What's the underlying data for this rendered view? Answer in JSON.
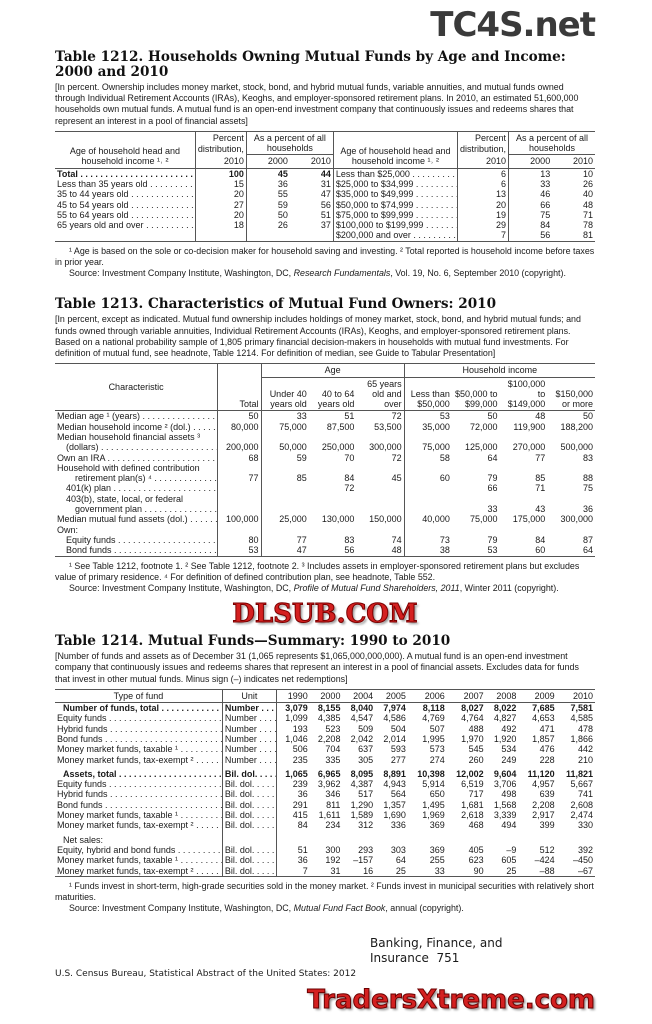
{
  "t1212": {
    "title": "Table 1212. Households Owning Mutual Funds by Age and Income: 2000 and 2010",
    "note": "[In percent. Ownership includes money market, stock, bond, and hybrid mutual funds, variable annuities, and mutual funds owned through Individual Retirement Accounts (IRAs), Keoghs, and employer-sponsored retirement plans. In 2010, an estimated 51,600,000 households own mutual funds. A mutual fund is an open-end investment company that continuously issues and redeems shares that represent an interest in a pool of financial assets]",
    "headers": {
      "age": "Age of household head and household income ¹˒ ²",
      "pct": "Percent distribution,",
      "pct_year": "2010",
      "share": "As a percent of all households",
      "y2000": "2000",
      "y2010": "2010"
    },
    "rows": [
      {
        "age": "Total",
        "pct": "100",
        "a": "45",
        "b": "44",
        "inc": "Less than $25,000",
        "ipct": "6",
        "ia": "13",
        "ib": "10",
        "bold": true
      },
      {
        "age": "Less than 35 years old",
        "pct": "15",
        "a": "36",
        "b": "31",
        "inc": "$25,000 to $34,999",
        "ipct": "6",
        "ia": "33",
        "ib": "26"
      },
      {
        "age": "35 to 44 years old",
        "pct": "20",
        "a": "55",
        "b": "47",
        "inc": "$35,000 to $49,999",
        "ipct": "13",
        "ia": "46",
        "ib": "40"
      },
      {
        "age": "45 to 54 years old",
        "pct": "27",
        "a": "59",
        "b": "56",
        "inc": "$50,000 to $74,999",
        "ipct": "20",
        "ia": "66",
        "ib": "48"
      },
      {
        "age": "55 to 64 years old",
        "pct": "20",
        "a": "50",
        "b": "51",
        "inc": "$75,000 to $99,999",
        "ipct": "19",
        "ia": "75",
        "ib": "71"
      },
      {
        "age": "65 years old and over",
        "pct": "18",
        "a": "26",
        "b": "37",
        "inc": "$100,000 to $199,999",
        "ipct": "29",
        "ia": "84",
        "ib": "78"
      },
      {
        "age": "",
        "pct": "",
        "a": "",
        "b": "",
        "inc": "$200,000 and over",
        "ipct": "7",
        "ia": "56",
        "ib": "81"
      }
    ],
    "footnote": "¹ Age is based on the sole or co-decision maker for household saving and investing. ² Total reported is household income before taxes in prior year.",
    "source_pre": "Source: Investment Company Institute, Washington, DC, ",
    "source_italic": "Research Fundamentals",
    "source_post": ", Vol. 19, No. 6, September 2010 (copyright)."
  },
  "t1213": {
    "title": "Table 1213. Characteristics of Mutual Fund Owners: 2010",
    "note": "[In percent, except as indicated. Mutual fund ownership includes holdings of money market, stock, bond, and hybrid mutual funds; and funds owned through variable annuities, Individual Retirement Accounts (IRAs), Keoghs, and employer-sponsored retirement plans. Based on a national probability sample of 1,805 primary financial decision-makers in households with mutual fund investments. For definition of mutual fund, see headnote, Table 1214. For definition of median, see Guide to Tabular Presentation]",
    "headers": {
      "characteristic": "Characteristic",
      "total": "Total",
      "age_group": "Age",
      "income_group": "Household income",
      "cols": [
        "Under 40 years old",
        "40 to 64 years old",
        "65 years old and over",
        "Less than $50,000",
        "$50,000 to $99,000",
        "$100,000 to $149,000",
        "$150,000 or more"
      ]
    },
    "rows": [
      {
        "label": "Median age ¹ (years)",
        "v": [
          "50",
          "33",
          "51",
          "72",
          "53",
          "50",
          "48",
          "50"
        ]
      },
      {
        "label": "Median household income ² (dol.)",
        "v": [
          "80,000",
          "75,000",
          "87,500",
          "53,500",
          "35,000",
          "72,000",
          "119,900",
          "188,200"
        ]
      },
      {
        "label": "Median household financial assets ³",
        "v": [],
        "nodots": true
      },
      {
        "label": "(dollars)",
        "indent": 1,
        "v": [
          "200,000",
          "50,000",
          "250,000",
          "300,000",
          "75,000",
          "125,000",
          "270,000",
          "500,000"
        ]
      },
      {
        "label": "Own an IRA",
        "v": [
          "68",
          "59",
          "70",
          "72",
          "58",
          "64",
          "77",
          "83"
        ]
      },
      {
        "label": "Household with defined contribution",
        "v": [],
        "nodots": true
      },
      {
        "label": "retirement plan(s) ⁴",
        "indent": 2,
        "v": [
          "77",
          "85",
          "84",
          "45",
          "60",
          "79",
          "85",
          "88"
        ]
      },
      {
        "label": "401(k) plan",
        "indent": 1,
        "v": [
          "",
          "",
          "72",
          "",
          "",
          "66",
          "71",
          "75"
        ]
      },
      {
        "label": "403(b), state, local, or federal",
        "indent": 1,
        "v": [],
        "nodots": true
      },
      {
        "label": "government plan",
        "indent": 2,
        "v": [
          "",
          "",
          "",
          "",
          "",
          "33",
          "43",
          "36"
        ]
      },
      {
        "label": "Median mutual fund assets (dol.)",
        "v": [
          "100,000",
          "25,000",
          "130,000",
          "150,000",
          "40,000",
          "75,000",
          "175,000",
          "300,000"
        ]
      },
      {
        "label": "Own:",
        "v": [],
        "nodots": true
      },
      {
        "label": "Equity funds",
        "indent": 1,
        "v": [
          "80",
          "77",
          "83",
          "74",
          "73",
          "79",
          "84",
          "87"
        ]
      },
      {
        "label": "Bond funds",
        "indent": 1,
        "v": [
          "53",
          "47",
          "56",
          "48",
          "38",
          "53",
          "60",
          "64"
        ]
      }
    ],
    "footnote": "¹ See Table 1212, footnote 1. ² See Table 1212, footnote 2. ³ Includes assets in employer-sponsored retirement plans but excludes value of primary residence. ⁴ For definition of defined contribution plan, see headnote, Table 552.",
    "source_pre": "Source: Investment Company Institute, Washington, DC, ",
    "source_italic": "Profile of Mutual Fund Shareholders, 2011",
    "source_post": ", Winter 2011 (copyright)."
  },
  "t1214": {
    "title": "Table 1214. Mutual Funds—Summary: 1990 to 2010",
    "note": "[Number of funds and assets as of December 31 (1,065 represents $1,065,000,000,000). A mutual fund is an open-end investment company that continuously issues and redeems shares that represent an interest in a pool of financial assets. Excludes data for funds that invest in other mutual funds. Minus sign (–) indicates net redemptions]",
    "headers": {
      "type": "Type of fund",
      "unit": "Unit",
      "years": [
        "1990",
        "2000",
        "2004",
        "2005",
        "2006",
        "2007",
        "2008",
        "2009",
        "2010"
      ]
    },
    "rows": [
      {
        "label": "Number of funds, total",
        "unit": "Number",
        "bold": true,
        "v": [
          "3,079",
          "8,155",
          "8,040",
          "7,974",
          "8,118",
          "8,027",
          "8,022",
          "7,685",
          "7,581"
        ]
      },
      {
        "label": "Equity funds",
        "unit": "Number",
        "v": [
          "1,099",
          "4,385",
          "4,547",
          "4,586",
          "4,769",
          "4,764",
          "4,827",
          "4,653",
          "4,585"
        ]
      },
      {
        "label": "Hybrid funds",
        "unit": "Number",
        "v": [
          "193",
          "523",
          "509",
          "504",
          "507",
          "488",
          "492",
          "471",
          "478"
        ]
      },
      {
        "label": "Bond funds",
        "unit": "Number",
        "v": [
          "1,046",
          "2,208",
          "2,042",
          "2,014",
          "1,995",
          "1,970",
          "1,920",
          "1,857",
          "1,866"
        ]
      },
      {
        "label": "Money market funds, taxable ¹",
        "unit": "Number",
        "v": [
          "506",
          "704",
          "637",
          "593",
          "573",
          "545",
          "534",
          "476",
          "442"
        ]
      },
      {
        "label": "Money market funds, tax-exempt ²",
        "unit": "Number",
        "v": [
          "235",
          "335",
          "305",
          "277",
          "274",
          "260",
          "249",
          "228",
          "210"
        ]
      },
      {
        "label": "Assets, total",
        "unit": "Bil. dol.",
        "bold": true,
        "gap": true,
        "v": [
          "1,065",
          "6,965",
          "8,095",
          "8,891",
          "10,398",
          "12,002",
          "9,604",
          "11,120",
          "11,821"
        ]
      },
      {
        "label": "Equity funds",
        "unit": "Bil. dol.",
        "v": [
          "239",
          "3,962",
          "4,387",
          "4,943",
          "5,914",
          "6,519",
          "3,706",
          "4,957",
          "5,667"
        ]
      },
      {
        "label": "Hybrid funds",
        "unit": "Bil. dol.",
        "v": [
          "36",
          "346",
          "517",
          "564",
          "650",
          "717",
          "498",
          "639",
          "741"
        ]
      },
      {
        "label": "Bond funds",
        "unit": "Bil. dol.",
        "v": [
          "291",
          "811",
          "1,290",
          "1,357",
          "1,495",
          "1,681",
          "1,568",
          "2,208",
          "2,608"
        ]
      },
      {
        "label": "Money market funds, taxable ¹",
        "unit": "Bil. dol.",
        "v": [
          "415",
          "1,611",
          "1,589",
          "1,690",
          "1,969",
          "2,618",
          "3,339",
          "2,917",
          "2,474"
        ]
      },
      {
        "label": "Money market funds, tax-exempt ²",
        "unit": "Bil. dol.",
        "v": [
          "84",
          "234",
          "312",
          "336",
          "369",
          "468",
          "494",
          "399",
          "330"
        ]
      },
      {
        "label": "Net sales:",
        "unit": "",
        "gap": true,
        "nodots": true,
        "v": []
      },
      {
        "label": "Equity, hybrid and bond funds",
        "unit": "Bil. dol.",
        "v": [
          "51",
          "300",
          "293",
          "303",
          "369",
          "405",
          "–9",
          "512",
          "392"
        ]
      },
      {
        "label": "Money market funds, taxable ¹",
        "unit": "Bil. dol.",
        "v": [
          "36",
          "192",
          "–157",
          "64",
          "255",
          "623",
          "605",
          "–424",
          "–450"
        ]
      },
      {
        "label": "Money market funds, tax-exempt ²",
        "unit": "Bil. dol.",
        "v": [
          "7",
          "31",
          "16",
          "25",
          "33",
          "90",
          "25",
          "–88",
          "–67"
        ]
      }
    ],
    "footnote": "¹ Funds invest in short-term, high-grade securities sold in the money market. ² Funds invest in municipal securities with relatively short maturities.",
    "source_pre": "Source: Investment Company Institute, Washington, DC, ",
    "source_italic": "Mutual Fund Fact Book",
    "source_post": ", annual (copyright)."
  },
  "footer": {
    "section": "Banking, Finance, and Insurance",
    "page_number": "751",
    "publication": "U.S. Census Bureau, Statistical Abstract of the United States: 2012"
  },
  "watermarks": {
    "top": "TC4S.net",
    "middle": "DLSUB.COM",
    "bottom": "TradersXtreme.com"
  },
  "colors": {
    "watermark_red": "#d42020",
    "watermark_dark": "#3a3a3a"
  }
}
